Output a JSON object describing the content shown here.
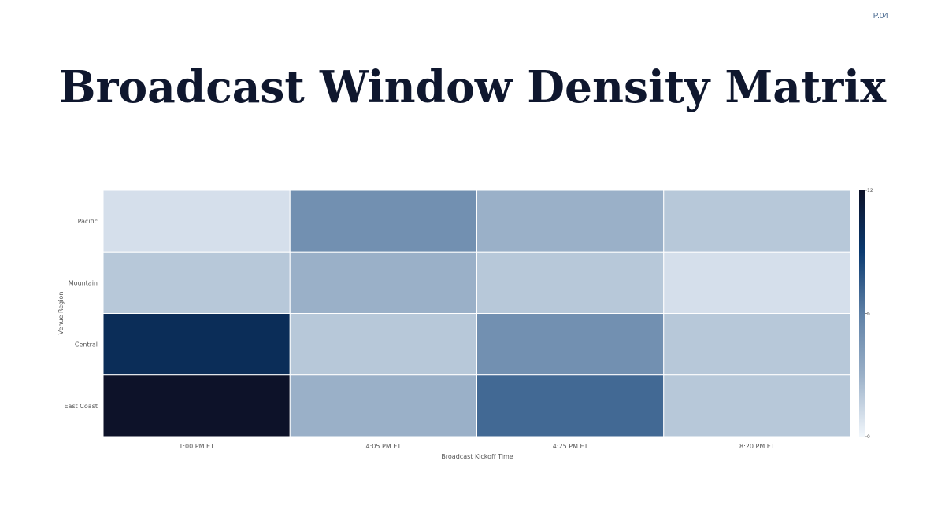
{
  "page_number": "P.04",
  "chart_data": {
    "type": "heatmap",
    "title": "Broadcast Window Density Matrix",
    "x_label": "Broadcast Kickoff Time",
    "y_label": "Venue Region",
    "x_categories": [
      "1:00 PM ET",
      "4:05 PM ET",
      "4:25 PM ET",
      "8:20 PM ET"
    ],
    "y_categories": [
      "Pacific",
      "Mountain",
      "Central",
      "East Coast"
    ],
    "values": [
      [
        1,
        5,
        3,
        2
      ],
      [
        2,
        3,
        2,
        1
      ],
      [
        10,
        2,
        5,
        2
      ],
      [
        12,
        3,
        7,
        2
      ]
    ],
    "clim": [
      0,
      12
    ],
    "cticks": [
      0,
      6,
      12
    ],
    "colorscale": [
      "#f2f7fc",
      "#9ab0c8",
      "#5e80a6",
      "#0a3a70",
      "#0d1229"
    ]
  }
}
